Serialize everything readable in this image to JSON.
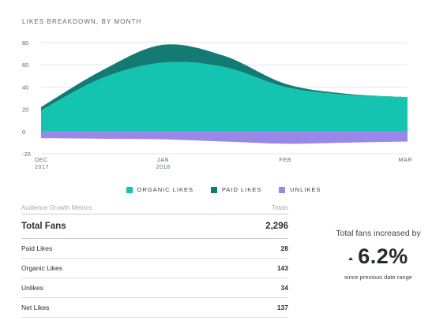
{
  "chart_data": {
    "type": "area",
    "title": "LIKES BREAKDOWN, BY MONTH",
    "x_tick_labels": [
      [
        "DEC",
        "2017"
      ],
      [
        "JAN",
        "2018"
      ],
      [
        "FEB",
        ""
      ],
      [
        "MAR",
        ""
      ]
    ],
    "x_points": [
      0,
      1,
      2,
      3
    ],
    "ylim": [
      -20,
      80
    ],
    "y_ticks": [
      -20,
      0,
      20,
      40,
      60,
      80
    ],
    "grid": true,
    "legend_position": "bottom",
    "stacked": true,
    "series": [
      {
        "name": "ORGANIC LIKES",
        "color": "#14c4b0",
        "points": [
          [
            0,
            19
          ],
          [
            0.5,
            48
          ],
          [
            1,
            62
          ],
          [
            1.5,
            58
          ],
          [
            2,
            40
          ],
          [
            2.5,
            33
          ],
          [
            3,
            31
          ]
        ]
      },
      {
        "name": "PAID LIKES",
        "color": "#147b74",
        "points": [
          [
            0,
            3
          ],
          [
            0.5,
            7
          ],
          [
            1,
            16
          ],
          [
            1.5,
            10
          ],
          [
            2,
            3
          ],
          [
            2.5,
            1
          ],
          [
            3,
            0
          ]
        ]
      },
      {
        "name": "UNLIKES",
        "color": "#9b87e8",
        "points": [
          [
            0,
            -6
          ],
          [
            0.5,
            -6.5
          ],
          [
            1,
            -7
          ],
          [
            1.5,
            -9
          ],
          [
            2,
            -11
          ],
          [
            2.5,
            -10
          ],
          [
            3,
            -9
          ]
        ]
      }
    ]
  },
  "metrics": {
    "header_label": "Audience Growth Metrics",
    "header_totals": "Totals",
    "total": {
      "label": "Total Fans",
      "value": "2,296"
    },
    "rows": [
      {
        "label": "Paid Likes",
        "value": "28"
      },
      {
        "label": "Organic Likes",
        "value": "143"
      },
      {
        "label": "Unlikes",
        "value": "34"
      },
      {
        "label": "Net Likes",
        "value": "137"
      }
    ]
  },
  "summary": {
    "label": "Total fans increased by",
    "value": "6.2%",
    "subtext": "since previous date range",
    "arrow_icon": "up-arrow-icon"
  }
}
